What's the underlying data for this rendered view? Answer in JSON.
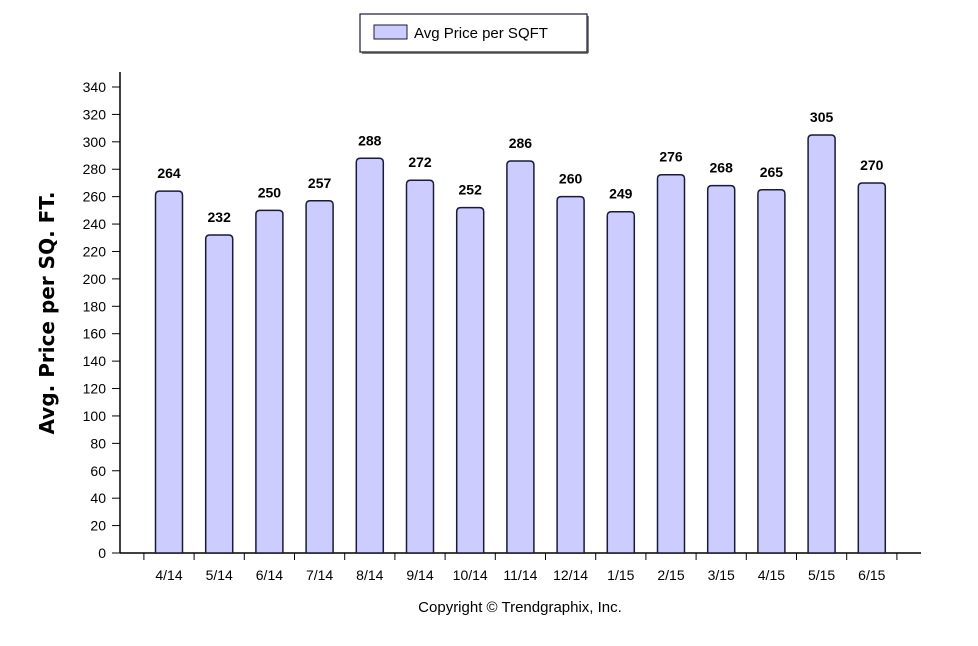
{
  "chart_data": {
    "type": "bar",
    "categories": [
      "4/14",
      "5/14",
      "6/14",
      "7/14",
      "8/14",
      "9/14",
      "10/14",
      "11/14",
      "12/14",
      "1/15",
      "2/15",
      "3/15",
      "4/15",
      "5/15",
      "6/15"
    ],
    "series": [
      {
        "name": "Avg Price per SQFT",
        "values": [
          264,
          232,
          250,
          257,
          288,
          272,
          252,
          286,
          260,
          249,
          276,
          268,
          265,
          305,
          270
        ]
      }
    ],
    "ylabel": "Avg. Price per SQ. FT.",
    "xlabel": "",
    "ylim": [
      0,
      340
    ],
    "yticks": [
      0,
      20,
      40,
      60,
      80,
      100,
      120,
      140,
      160,
      180,
      200,
      220,
      240,
      260,
      280,
      300,
      320,
      340
    ],
    "data_labels": true,
    "legend_position": "top-center",
    "bar_color": "#ccccff",
    "bar_stroke": "#1a1a3a"
  },
  "footer": {
    "copyright": "Copyright © Trendgraphix, Inc."
  }
}
